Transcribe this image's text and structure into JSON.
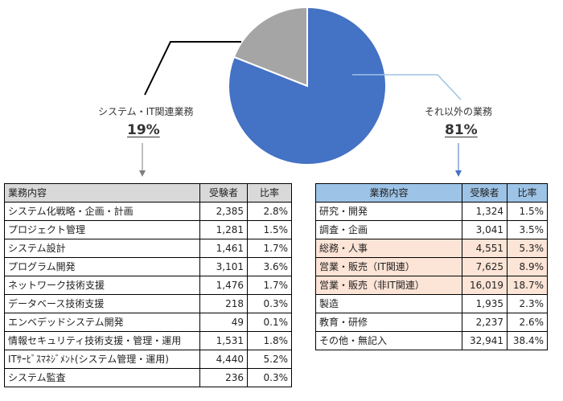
{
  "chart_data": {
    "type": "pie",
    "title": "",
    "slices": [
      {
        "label": "システム・IT関連業務",
        "percent": 19,
        "display": "19%",
        "color": "#a5a5a5"
      },
      {
        "label": "それ以外の業務",
        "percent": 81,
        "display": "81%",
        "color": "#4472c4"
      }
    ]
  },
  "tables": {
    "left": {
      "headers": [
        "業務内容",
        "受験者",
        "比率"
      ],
      "rows": [
        {
          "name": "システム化戦略・企画・計画",
          "count": "2,385",
          "ratio": "2.8%"
        },
        {
          "name": "プロジェクト管理",
          "count": "1,281",
          "ratio": "1.5%"
        },
        {
          "name": "システム設計",
          "count": "1,461",
          "ratio": "1.7%"
        },
        {
          "name": "プログラム開発",
          "count": "3,101",
          "ratio": "3.6%"
        },
        {
          "name": "ネットワーク技術支援",
          "count": "1,476",
          "ratio": "1.7%"
        },
        {
          "name": "データベース技術支援",
          "count": "218",
          "ratio": "0.3%"
        },
        {
          "name": "エンベデッドシステム開発",
          "count": "49",
          "ratio": "0.1%"
        },
        {
          "name": "情報セキュリティ技術支援・管理・運用",
          "count": "1,531",
          "ratio": "1.8%"
        },
        {
          "name": "ITｻｰﾋﾞｽﾏﾈｼﾞﾒﾝﾄ(システム管理・運用)",
          "count": "4,440",
          "ratio": "5.2%"
        },
        {
          "name": "システム監査",
          "count": "236",
          "ratio": "0.3%"
        }
      ]
    },
    "right": {
      "headers": [
        "業務内容",
        "受験者",
        "比率"
      ],
      "rows": [
        {
          "name": "研究・開発",
          "count": "1,324",
          "ratio": "1.5%",
          "highlight": false
        },
        {
          "name": "調査・企画",
          "count": "3,041",
          "ratio": "3.5%",
          "highlight": false
        },
        {
          "name": "総務・人事",
          "count": "4,551",
          "ratio": "5.3%",
          "highlight": true
        },
        {
          "name": "営業・販売（IT関連）",
          "count": "7,625",
          "ratio": "8.9%",
          "highlight": true
        },
        {
          "name": "営業・販売（非IT関連）",
          "count": "16,019",
          "ratio": "18.7%",
          "highlight": true
        },
        {
          "name": "製造",
          "count": "1,935",
          "ratio": "2.3%",
          "highlight": false
        },
        {
          "name": "教育・研修",
          "count": "2,237",
          "ratio": "2.6%",
          "highlight": false
        },
        {
          "name": "その他・無記入",
          "count": "32,941",
          "ratio": "38.4%",
          "highlight": false
        }
      ]
    }
  },
  "colors": {
    "highlight_row": "#fce4d6",
    "left_header": "#d9d9d9",
    "right_header": "#9dc3e6"
  }
}
